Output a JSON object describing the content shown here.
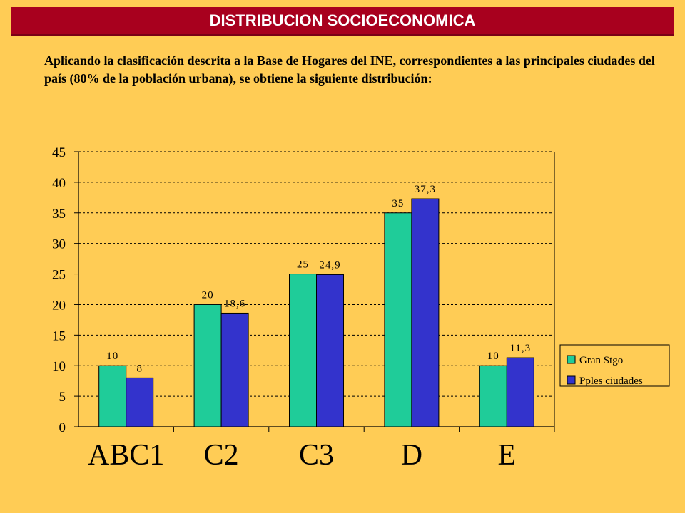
{
  "header": {
    "title": "DISTRIBUCION SOCIOECONOMICA"
  },
  "intro": {
    "text": "Aplicando la clasificación descrita a la Base de Hogares del INE, correspondientes a las principales ciudades del país (80% de la población urbana), se obtiene la siguiente distribución:"
  },
  "colors": {
    "background": "#FFCC55",
    "title_bar": "#A8001E",
    "series_1": "#1FCC99",
    "series_2": "#3333CC",
    "grid": "#000000"
  },
  "chart_data": {
    "type": "bar",
    "categories": [
      "ABC1",
      "C2",
      "C3",
      "D",
      "E"
    ],
    "series": [
      {
        "name": "Gran Stgo",
        "values": [
          10,
          20,
          25,
          35,
          10
        ],
        "labels": [
          "10",
          "20",
          "25",
          "35",
          "10"
        ]
      },
      {
        "name": "Pples ciudades",
        "values": [
          8,
          18.6,
          24.9,
          37.3,
          11.3
        ],
        "labels": [
          "8",
          "18,6",
          "24,9",
          "37,3",
          "11,3"
        ]
      }
    ],
    "ylim": [
      0,
      45
    ],
    "yticks": [
      0,
      5,
      10,
      15,
      20,
      25,
      30,
      35,
      40,
      45
    ],
    "grid": "horizontal dashed",
    "legend_position": "right"
  }
}
